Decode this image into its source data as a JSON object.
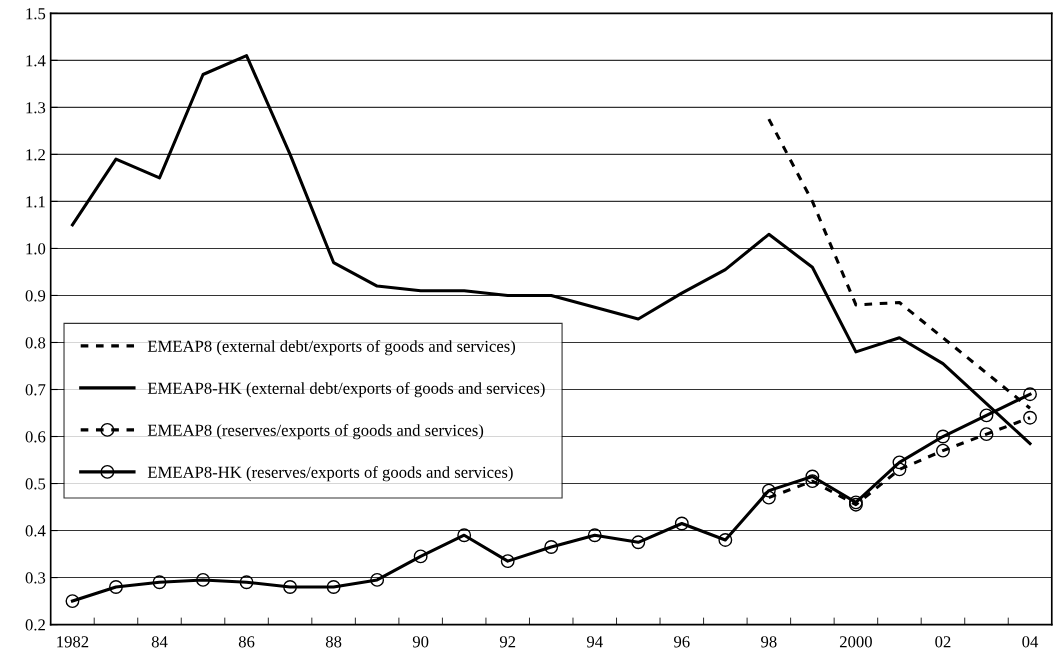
{
  "chart_data": {
    "type": "line",
    "categories": [
      "1982",
      null,
      "84",
      null,
      "86",
      null,
      "88",
      null,
      "90",
      null,
      "92",
      null,
      "94",
      null,
      "96",
      null,
      "98",
      null,
      "2000",
      null,
      "02",
      null,
      "04"
    ],
    "series": [
      {
        "name": "EMEAP8 (external debt/exports of goods and services)",
        "color": "#000000",
        "line_style": "dashed",
        "marker": "none",
        "values": [
          null,
          null,
          null,
          null,
          null,
          null,
          null,
          null,
          null,
          null,
          null,
          null,
          null,
          null,
          null,
          null,
          1.275,
          1.1,
          0.88,
          0.885,
          0.81,
          0.735,
          0.66
        ]
      },
      {
        "name": "EMEAP8-HK (external debt/exports of goods and services)",
        "color": "#000000",
        "line_style": "solid",
        "marker": "none",
        "values": [
          1.05,
          1.19,
          1.15,
          1.37,
          1.41,
          1.2,
          0.97,
          0.92,
          0.91,
          0.91,
          0.9,
          0.9,
          0.875,
          0.85,
          0.905,
          0.955,
          1.03,
          0.96,
          0.78,
          0.81,
          0.755,
          0.67,
          0.585
        ]
      },
      {
        "name": "EMEAP8 (reserves/exports of goods and services)",
        "color": "#000000",
        "line_style": "dashed",
        "marker": "circle",
        "values": [
          null,
          null,
          null,
          null,
          null,
          null,
          null,
          null,
          null,
          null,
          null,
          null,
          null,
          null,
          null,
          null,
          0.47,
          0.505,
          0.455,
          0.53,
          0.57,
          0.605,
          0.64
        ]
      },
      {
        "name": "EMEAP8-HK (reserves/exports of goods and services)",
        "color": "#000000",
        "line_style": "solid",
        "marker": "circle",
        "values": [
          0.25,
          0.28,
          0.29,
          0.295,
          0.29,
          0.28,
          0.28,
          0.295,
          0.345,
          0.39,
          0.335,
          0.365,
          0.39,
          0.375,
          0.415,
          0.38,
          0.485,
          0.515,
          0.46,
          0.545,
          0.6,
          0.645,
          0.69
        ]
      }
    ],
    "ylim": [
      0.2,
      1.5
    ],
    "yticks": [
      {
        "value": 0.2,
        "label": "0.2"
      },
      {
        "value": 0.3,
        "label": "0.3"
      },
      {
        "value": 0.4,
        "label": "0.4"
      },
      {
        "value": 0.5,
        "label": "0.5"
      },
      {
        "value": 0.6,
        "label": "0.6"
      },
      {
        "value": 0.7,
        "label": "0.7"
      },
      {
        "value": 0.8,
        "label": "0.8"
      },
      {
        "value": 0.9,
        "label": "0.9"
      },
      {
        "value": 1.0,
        "label": "1.0"
      },
      {
        "value": 1.1,
        "label": "1.1"
      },
      {
        "value": 1.2,
        "label": "1.2"
      },
      {
        "value": 1.3,
        "label": "1.3"
      },
      {
        "value": 1.4,
        "label": "1.4"
      },
      {
        "value": 1.5,
        "label": "1.5"
      }
    ],
    "grid": "y",
    "legend": "center left"
  }
}
